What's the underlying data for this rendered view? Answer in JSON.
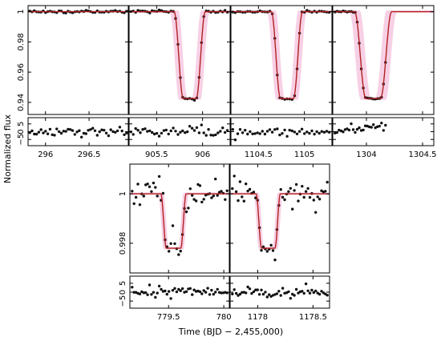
{
  "figure": {
    "ylabel": "Normalized flux",
    "xlabel": "Time (BJD − 2,455,000)",
    "model_color": "#b22222",
    "data_color": "#111111",
    "envelope_color": "#f6c8e0"
  },
  "chart_data": [
    {
      "type": "scatter",
      "id": "t1",
      "xlim": [
        295.8,
        296.95
      ],
      "ylim": [
        0.932,
        1.004
      ],
      "xticks": [
        296,
        296.5
      ],
      "yticks": [
        0.94,
        0.96,
        0.98,
        1
      ],
      "ytick_labels": [
        "0.94",
        "0.96",
        "0.98",
        "1"
      ],
      "residual_ylim": [
        -9,
        9
      ],
      "residual_yticks": [
        -5,
        0,
        5
      ],
      "residual_ytick_labels": [
        "−5",
        "0",
        "5"
      ],
      "model": {
        "depth": 0.0575,
        "t0": null,
        "half_width": 0,
        "ingress": 0,
        "x_end": 296.95
      },
      "data": {
        "x_start": 295.82,
        "x_end": 296.93,
        "n": 44,
        "noise": 0.0004,
        "residual_noise": 1.4
      }
    },
    {
      "type": "scatter",
      "id": "t2",
      "xlim": [
        905.2,
        906.3
      ],
      "ylim": [
        0.932,
        1.004
      ],
      "xticks": [
        905.5,
        906
      ],
      "yticks": [
        0.94,
        0.96,
        0.98,
        1
      ],
      "ytick_labels": [
        "",
        "",
        "",
        ""
      ],
      "residual_ylim": [
        -9,
        9
      ],
      "residual_yticks": [
        -5,
        0,
        5
      ],
      "residual_ytick_labels": [
        "",
        "",
        ""
      ],
      "model": {
        "depth": 0.0575,
        "t0": 905.86,
        "half_width": 0.12,
        "ingress": 0.05,
        "x_end": 906.3
      },
      "data": {
        "x_start": 905.22,
        "x_end": 906.27,
        "n": 42,
        "noise": 0.0005,
        "residual_noise": 1.8
      }
    },
    {
      "type": "scatter",
      "id": "t3",
      "xlim": [
        1104.2,
        1105.3
      ],
      "ylim": [
        0.932,
        1.004
      ],
      "xticks": [
        1104.5,
        1105
      ],
      "yticks": [
        0.94,
        0.96,
        0.98,
        1
      ],
      "ytick_labels": [
        "",
        "",
        "",
        ""
      ],
      "residual_ylim": [
        -9,
        9
      ],
      "residual_yticks": [
        -5,
        0,
        5
      ],
      "residual_ytick_labels": [
        "",
        "",
        ""
      ],
      "model": {
        "depth": 0.0575,
        "t0": 1104.81,
        "half_width": 0.12,
        "ingress": 0.05,
        "x_end": 1105.3
      },
      "data": {
        "x_start": 1104.22,
        "x_end": 1105.27,
        "n": 40,
        "noise": 0.0004,
        "residual_noise": 1.5
      }
    },
    {
      "type": "scatter",
      "id": "t4",
      "xlim": [
        1303.7,
        1304.6
      ],
      "ylim": [
        0.932,
        1.004
      ],
      "xticks": [
        1304,
        1304.5
      ],
      "yticks": [
        0.94,
        0.96,
        0.98,
        1
      ],
      "ytick_labels": [
        "",
        "",
        "",
        ""
      ],
      "residual_ylim": [
        -9,
        9
      ],
      "residual_yticks": [
        -5,
        0,
        5
      ],
      "residual_ytick_labels": [
        "",
        "",
        ""
      ],
      "model": {
        "depth": 0.0575,
        "t0": 1304.06,
        "half_width": 0.115,
        "ingress": 0.05,
        "x_end": 1304.6
      },
      "data": {
        "x_start": 1303.72,
        "x_end": 1304.17,
        "n": 26,
        "noise": 0.0004,
        "residual_noise": 1.3
      }
    },
    {
      "type": "scatter",
      "id": "t5",
      "xlim": [
        779.15,
        780.05
      ],
      "ylim": [
        0.9968,
        1.0012
      ],
      "xticks": [
        779.5,
        780
      ],
      "yticks": [
        0.998,
        1
      ],
      "ytick_labels": [
        "0.998",
        "1"
      ],
      "residual_ylim": [
        -9,
        9
      ],
      "residual_yticks": [
        -5,
        0,
        5
      ],
      "residual_ytick_labels": [
        "−5",
        "0",
        "5"
      ],
      "model": {
        "depth": 0.0022,
        "t0": 779.545,
        "half_width": 0.09,
        "ingress": 0.025,
        "x_end": 780.05
      },
      "data": {
        "x_start": 779.17,
        "x_end": 780.03,
        "n": 50,
        "noise": 0.00033,
        "residual_noise": 1.6
      }
    },
    {
      "type": "scatter",
      "id": "t6",
      "xlim": [
        1177.75,
        1178.65
      ],
      "ylim": [
        0.9968,
        1.0012
      ],
      "xticks": [
        1178,
        1178.5
      ],
      "yticks": [
        0.998,
        1
      ],
      "ytick_labels": [
        "",
        ""
      ],
      "residual_ylim": [
        -9,
        9
      ],
      "residual_yticks": [
        -5,
        0,
        5
      ],
      "residual_ytick_labels": [
        "",
        "",
        ""
      ],
      "model": {
        "depth": 0.0022,
        "t0": 1178.095,
        "half_width": 0.085,
        "ingress": 0.025,
        "x_end": 1178.65
      },
      "data": {
        "x_start": 1177.77,
        "x_end": 1178.63,
        "n": 50,
        "noise": 0.00033,
        "residual_noise": 1.6
      }
    }
  ]
}
